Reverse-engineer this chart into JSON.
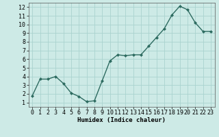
{
  "x": [
    0,
    1,
    2,
    3,
    4,
    5,
    6,
    7,
    8,
    9,
    10,
    11,
    12,
    13,
    14,
    15,
    16,
    17,
    18,
    19,
    20,
    21,
    22,
    23
  ],
  "y": [
    1.8,
    3.7,
    3.7,
    4.0,
    3.2,
    2.1,
    1.7,
    1.1,
    1.2,
    3.5,
    5.8,
    6.5,
    6.4,
    6.5,
    6.5,
    7.5,
    8.5,
    9.5,
    11.1,
    12.1,
    11.7,
    10.2,
    9.2,
    9.2
  ],
  "line_color": "#2d6b60",
  "marker": "D",
  "marker_size": 2.0,
  "bg_color": "#cdeae6",
  "grid_color": "#aad3cf",
  "xlabel": "Humidex (Indice chaleur)",
  "xlim": [
    -0.5,
    23.5
  ],
  "ylim": [
    0.5,
    12.5
  ],
  "yticks": [
    1,
    2,
    3,
    4,
    5,
    6,
    7,
    8,
    9,
    10,
    11,
    12
  ],
  "xticks": [
    0,
    1,
    2,
    3,
    4,
    5,
    6,
    7,
    8,
    9,
    10,
    11,
    12,
    13,
    14,
    15,
    16,
    17,
    18,
    19,
    20,
    21,
    22,
    23
  ],
  "xlabel_fontsize": 6.5,
  "tick_fontsize": 6.0,
  "line_width": 1.0
}
